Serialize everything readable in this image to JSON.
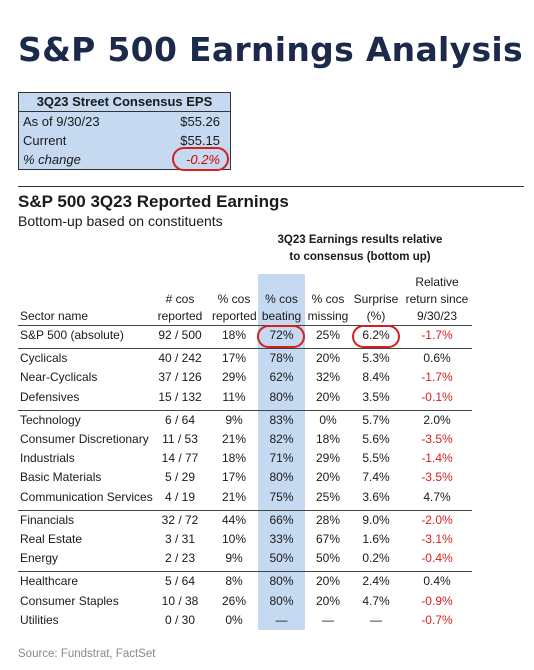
{
  "title": "S&P 500 Earnings Analysis",
  "consensus_box": {
    "header": "3Q23 Street Consensus EPS",
    "rows": [
      {
        "label": "As of 9/30/23",
        "value": "$55.26"
      },
      {
        "label": "Current",
        "value": "$55.15"
      },
      {
        "label": "% change",
        "value": "-0.2%"
      }
    ]
  },
  "section": {
    "title": "S&P 500 3Q23 Reported Earnings",
    "subtitle": "Bottom-up based on constituents",
    "note_line1": "3Q23 Earnings results relative",
    "note_line2": "to consensus (bottom up)"
  },
  "table": {
    "headers": {
      "sector": "Sector name",
      "reported": [
        "# cos",
        "reported"
      ],
      "pct_reported": [
        "% cos",
        "reported"
      ],
      "beating": [
        "% cos",
        "beating"
      ],
      "missing": [
        "% cos",
        "missing"
      ],
      "surprise": [
        "Surprise",
        "(%)"
      ],
      "relative": [
        "Relative",
        "return since",
        "9/30/23"
      ]
    },
    "groups": [
      [
        {
          "name": "S&P 500 (absolute)",
          "reported": "92 / 500",
          "pct_reported": "18%",
          "beating": "72%",
          "missing": "25%",
          "surprise": "6.2%",
          "relative": "-1.7%"
        }
      ],
      [
        {
          "name": "Cyclicals",
          "reported": "40 / 242",
          "pct_reported": "17%",
          "beating": "78%",
          "missing": "20%",
          "surprise": "5.3%",
          "relative": "0.6%"
        },
        {
          "name": "Near-Cyclicals",
          "reported": "37 / 126",
          "pct_reported": "29%",
          "beating": "62%",
          "missing": "32%",
          "surprise": "8.4%",
          "relative": "-1.7%"
        },
        {
          "name": "Defensives",
          "reported": "15 / 132",
          "pct_reported": "11%",
          "beating": "80%",
          "missing": "20%",
          "surprise": "3.5%",
          "relative": "-0.1%"
        }
      ],
      [
        {
          "name": "Technology",
          "reported": "6 / 64",
          "pct_reported": "9%",
          "beating": "83%",
          "missing": "0%",
          "surprise": "5.7%",
          "relative": "2.0%"
        },
        {
          "name": "Consumer Discretionary",
          "reported": "11 / 53",
          "pct_reported": "21%",
          "beating": "82%",
          "missing": "18%",
          "surprise": "5.6%",
          "relative": "-3.5%"
        },
        {
          "name": "Industrials",
          "reported": "14 / 77",
          "pct_reported": "18%",
          "beating": "71%",
          "missing": "29%",
          "surprise": "5.5%",
          "relative": "-1.4%"
        },
        {
          "name": "Basic Materials",
          "reported": "5 / 29",
          "pct_reported": "17%",
          "beating": "80%",
          "missing": "20%",
          "surprise": "7.4%",
          "relative": "-3.5%"
        },
        {
          "name": "Communication Services",
          "reported": "4 / 19",
          "pct_reported": "21%",
          "beating": "75%",
          "missing": "25%",
          "surprise": "3.6%",
          "relative": "4.7%"
        }
      ],
      [
        {
          "name": "Financials",
          "reported": "32 / 72",
          "pct_reported": "44%",
          "beating": "66%",
          "missing": "28%",
          "surprise": "9.0%",
          "relative": "-2.0%"
        },
        {
          "name": "Real Estate",
          "reported": "3 / 31",
          "pct_reported": "10%",
          "beating": "33%",
          "missing": "67%",
          "surprise": "1.6%",
          "relative": "-3.1%"
        },
        {
          "name": "Energy",
          "reported": "2 / 23",
          "pct_reported": "9%",
          "beating": "50%",
          "missing": "50%",
          "surprise": "0.2%",
          "relative": "-0.4%"
        }
      ],
      [
        {
          "name": "Healthcare",
          "reported": "5 / 64",
          "pct_reported": "8%",
          "beating": "80%",
          "missing": "20%",
          "surprise": "2.4%",
          "relative": "0.4%"
        },
        {
          "name": "Consumer Staples",
          "reported": "10 / 38",
          "pct_reported": "26%",
          "beating": "80%",
          "missing": "20%",
          "surprise": "4.7%",
          "relative": "-0.9%"
        },
        {
          "name": "Utilities",
          "reported": "0 / 30",
          "pct_reported": "0%",
          "beating": "—",
          "missing": "—",
          "surprise": "—",
          "relative": "-0.7%"
        }
      ]
    ]
  },
  "source": "Source: Fundstrat, FactSet"
}
